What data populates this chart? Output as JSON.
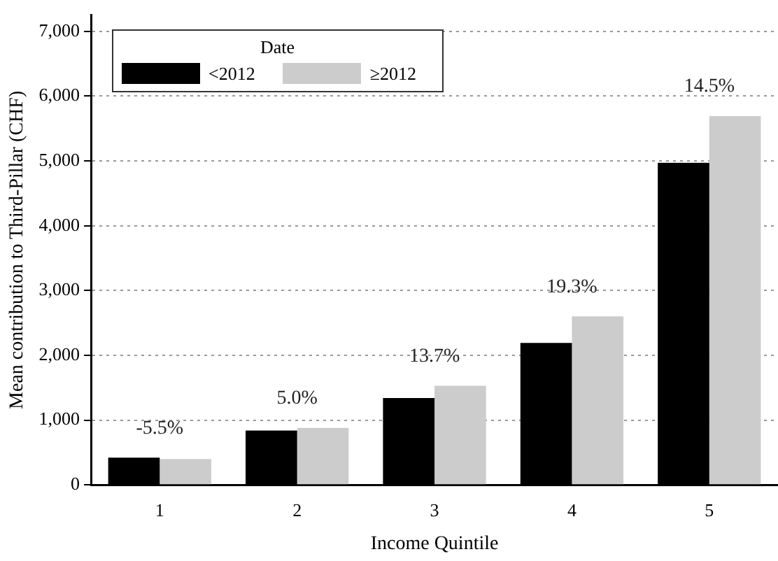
{
  "chart_data": {
    "type": "bar",
    "xlabel": "Income Quintile",
    "ylabel": "Mean contribution to Third-Pillar (CHF)",
    "legend_title": "Date",
    "categories": [
      "1",
      "2",
      "3",
      "4",
      "5"
    ],
    "series": [
      {
        "name": "<2012",
        "color": "#000000",
        "values": [
          420,
          840,
          1340,
          2190,
          4970
        ]
      },
      {
        "name": "≥2012",
        "color": "#cccccc",
        "values": [
          400,
          880,
          1530,
          2600,
          5690
        ]
      }
    ],
    "ylim": [
      0,
      7250
    ],
    "yticks": [
      0,
      {
        "value": 1000,
        "label": "1,000"
      },
      {
        "value": 2000,
        "label": "2,000"
      },
      {
        "value": 3000,
        "label": "3,000"
      },
      {
        "value": 4000,
        "label": "4,000"
      },
      {
        "value": 5000,
        "label": "5,000"
      },
      {
        "value": 6000,
        "label": "6,000"
      },
      {
        "value": 7000,
        "label": "7,000"
      }
    ],
    "grid": "y",
    "legend": "top left",
    "annotations": [
      {
        "text": "-5.5%",
        "x": "1",
        "y": 420
      },
      {
        "text": "5.0%",
        "x": "2",
        "y": 880
      },
      {
        "text": "13.7%",
        "x": "3",
        "y": 1530
      },
      {
        "text": "19.3%",
        "x": "4",
        "y": 2600
      },
      {
        "text": "14.5%",
        "x": "5",
        "y": 5690
      }
    ]
  }
}
